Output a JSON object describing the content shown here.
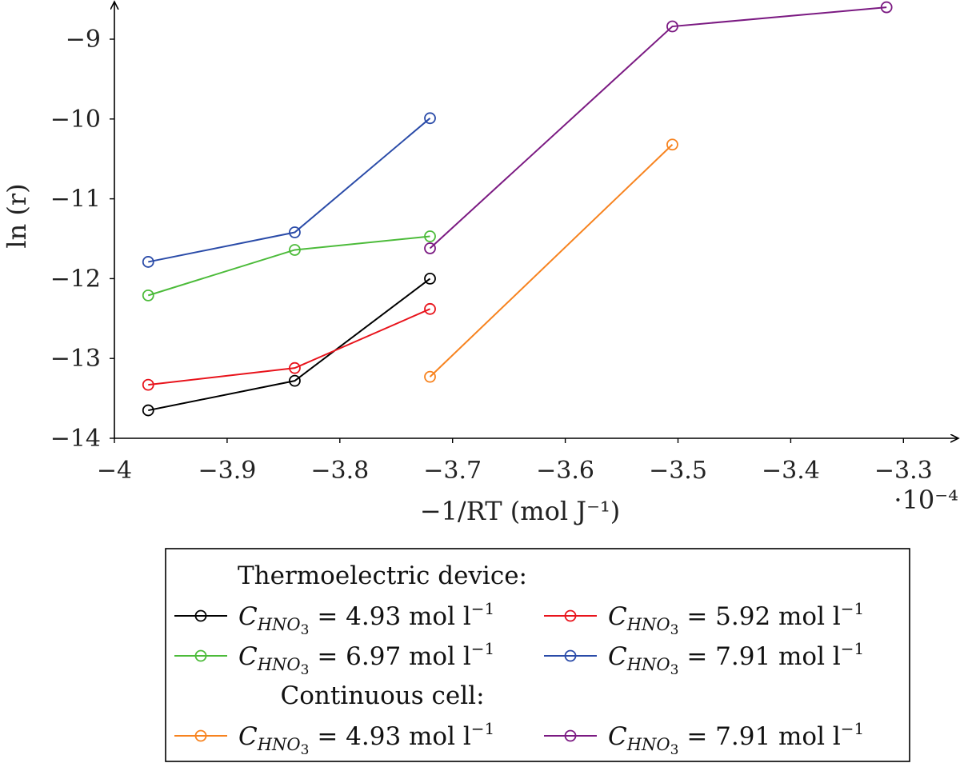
{
  "chart_data": {
    "type": "line",
    "xlabel": "−1/RT (mol J⁻¹)",
    "ylabel": "ln (r)",
    "x_multiplier": "·10⁻⁴",
    "xlim": [
      -4.0,
      -3.28
    ],
    "ylim": [
      -14,
      -8.6
    ],
    "x_ticks": [
      -4,
      -3.9,
      -3.8,
      -3.7,
      -3.6,
      -3.5,
      -3.4,
      -3.3
    ],
    "x_tick_labels": [
      "−4",
      "−3.9",
      "−3.8",
      "−3.7",
      "−3.6",
      "−3.5",
      "−3.4",
      "−3.3"
    ],
    "y_ticks": [
      -14,
      -13,
      -12,
      -11,
      -10,
      -9
    ],
    "y_tick_labels": [
      "−14",
      "−13",
      "−12",
      "−11",
      "−10",
      "−9"
    ],
    "grid": false,
    "legend_placement": "below",
    "legend_groups": [
      {
        "heading": "Thermoelectric device:",
        "series_indices": [
          0,
          1,
          2,
          3
        ]
      },
      {
        "heading": "Continuous cell:",
        "series_indices": [
          4,
          5
        ]
      }
    ],
    "series": [
      {
        "name": "C_HNO3 = 4.93 mol l⁻¹",
        "concentration": "4.93",
        "color": "#000000",
        "x": [
          -3.97,
          -3.84,
          -3.72
        ],
        "y": [
          -13.65,
          -13.28,
          -12.0
        ]
      },
      {
        "name": "C_HNO3 = 5.92 mol l⁻¹",
        "concentration": "5.92",
        "color": "#e8141c",
        "x": [
          -3.97,
          -3.84,
          -3.72
        ],
        "y": [
          -13.33,
          -13.12,
          -12.38
        ]
      },
      {
        "name": "C_HNO3 = 6.97 mol l⁻¹",
        "concentration": "6.97",
        "color": "#4cbb3a",
        "x": [
          -3.97,
          -3.84,
          -3.72
        ],
        "y": [
          -12.21,
          -11.64,
          -11.47
        ]
      },
      {
        "name": "C_HNO3 = 7.91 mol l⁻¹",
        "concentration": "7.91",
        "color": "#2a4ba8",
        "x": [
          -3.97,
          -3.84,
          -3.72
        ],
        "y": [
          -11.79,
          -11.42,
          -9.99
        ]
      },
      {
        "name": "C_HNO3 = 4.93 mol l⁻¹",
        "concentration": "4.93",
        "color": "#f7831f",
        "x": [
          -3.72,
          -3.505
        ],
        "y": [
          -13.23,
          -10.32
        ]
      },
      {
        "name": "C_HNO3 = 7.91 mol l⁻¹",
        "concentration": "7.91",
        "color": "#7b1a82",
        "x": [
          -3.72,
          -3.505,
          -3.315
        ],
        "y": [
          -11.62,
          -8.84,
          -8.6
        ]
      }
    ]
  }
}
